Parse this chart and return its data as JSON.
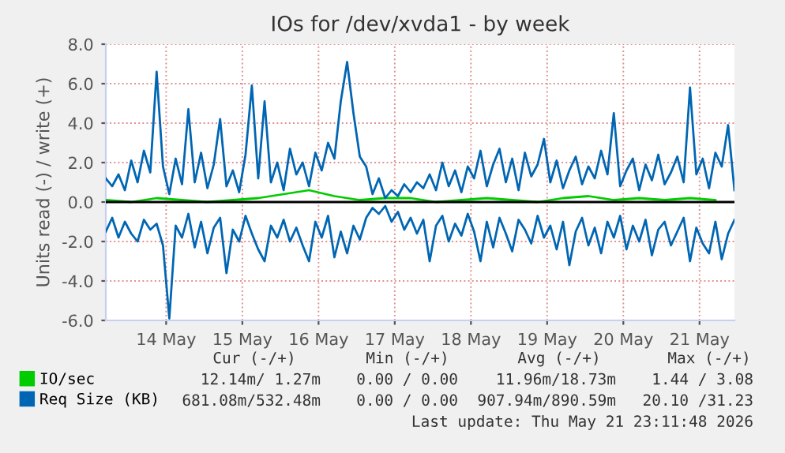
{
  "chart_data": {
    "type": "line",
    "title": "IOs for /dev/xvda1 - by week",
    "ylabel": "Units read (-) / write (+)",
    "x": [
      "2026-05-13T05:00",
      "2026-05-13T07:00",
      "2026-05-13T09:00",
      "2026-05-13T11:00",
      "2026-05-13T13:00",
      "2026-05-13T15:00",
      "2026-05-13T17:00",
      "2026-05-13T19:00",
      "2026-05-13T21:00",
      "2026-05-13T23:00",
      "2026-05-14T01:00",
      "2026-05-14T03:00",
      "2026-05-14T05:00",
      "2026-05-14T07:00",
      "2026-05-14T09:00",
      "2026-05-14T11:00",
      "2026-05-14T13:00",
      "2026-05-14T15:00",
      "2026-05-14T17:00",
      "2026-05-14T19:00",
      "2026-05-14T21:00",
      "2026-05-14T23:00",
      "2026-05-15T01:00",
      "2026-05-15T03:00",
      "2026-05-15T05:00",
      "2026-05-15T07:00",
      "2026-05-15T09:00",
      "2026-05-15T11:00",
      "2026-05-15T13:00",
      "2026-05-15T15:00",
      "2026-05-15T17:00",
      "2026-05-15T19:00",
      "2026-05-15T21:00",
      "2026-05-15T23:00",
      "2026-05-16T01:00",
      "2026-05-16T03:00",
      "2026-05-16T05:00",
      "2026-05-16T07:00",
      "2026-05-16T09:00",
      "2026-05-16T11:00",
      "2026-05-16T13:00",
      "2026-05-16T15:00",
      "2026-05-16T17:00",
      "2026-05-16T19:00",
      "2026-05-16T21:00",
      "2026-05-16T23:00",
      "2026-05-17T01:00",
      "2026-05-17T03:00",
      "2026-05-17T05:00",
      "2026-05-17T07:00",
      "2026-05-17T09:00",
      "2026-05-17T11:00",
      "2026-05-17T13:00",
      "2026-05-17T15:00",
      "2026-05-17T17:00",
      "2026-05-17T19:00",
      "2026-05-17T21:00",
      "2026-05-17T23:00",
      "2026-05-18T01:00",
      "2026-05-18T03:00",
      "2026-05-18T05:00",
      "2026-05-18T07:00",
      "2026-05-18T09:00",
      "2026-05-18T11:00",
      "2026-05-18T13:00",
      "2026-05-18T15:00",
      "2026-05-18T17:00",
      "2026-05-18T19:00",
      "2026-05-18T21:00",
      "2026-05-18T23:00",
      "2026-05-19T01:00",
      "2026-05-19T03:00",
      "2026-05-19T05:00",
      "2026-05-19T07:00",
      "2026-05-19T09:00",
      "2026-05-19T11:00",
      "2026-05-19T13:00",
      "2026-05-19T15:00",
      "2026-05-19T17:00",
      "2026-05-19T19:00",
      "2026-05-19T21:00",
      "2026-05-19T23:00",
      "2026-05-20T01:00",
      "2026-05-20T03:00",
      "2026-05-20T05:00",
      "2026-05-20T07:00",
      "2026-05-20T09:00",
      "2026-05-20T11:00",
      "2026-05-20T13:00",
      "2026-05-20T15:00",
      "2026-05-20T17:00",
      "2026-05-20T19:00",
      "2026-05-20T21:00",
      "2026-05-20T23:00",
      "2026-05-21T01:00",
      "2026-05-21T03:00",
      "2026-05-21T05:00",
      "2026-05-21T07:00",
      "2026-05-21T09:00",
      "2026-05-21T11:00"
    ],
    "series": [
      {
        "name": "IO/sec",
        "color": "#00cc00",
        "x": [
          "2026-05-13T05:00",
          "2026-05-13T13:00",
          "2026-05-13T21:00",
          "2026-05-14T05:00",
          "2026-05-14T13:00",
          "2026-05-14T21:00",
          "2026-05-15T05:00",
          "2026-05-15T13:00",
          "2026-05-15T21:00",
          "2026-05-16T05:00",
          "2026-05-16T13:00",
          "2026-05-16T21:00",
          "2026-05-17T05:00",
          "2026-05-17T13:00",
          "2026-05-17T21:00",
          "2026-05-18T05:00",
          "2026-05-18T13:00",
          "2026-05-18T21:00",
          "2026-05-19T05:00",
          "2026-05-19T13:00",
          "2026-05-19T21:00",
          "2026-05-20T05:00",
          "2026-05-20T13:00",
          "2026-05-20T21:00",
          "2026-05-21T05:00"
        ],
        "values": [
          0.1,
          0.0,
          0.2,
          0.1,
          0.0,
          0.1,
          0.2,
          0.4,
          0.6,
          0.3,
          0.1,
          0.2,
          0.2,
          0.0,
          0.1,
          0.2,
          0.1,
          0.0,
          0.2,
          0.3,
          0.1,
          0.2,
          0.1,
          0.2,
          0.1
        ]
      },
      {
        "name": "Req Size (KB)",
        "color": "#0066b3",
        "values": [
          1.2,
          0.8,
          1.4,
          0.6,
          2.1,
          1.0,
          2.6,
          1.5,
          6.6,
          1.8,
          0.4,
          2.2,
          0.9,
          4.7,
          1.0,
          2.5,
          0.7,
          1.9,
          4.2,
          0.8,
          1.6,
          0.5,
          2.4,
          5.9,
          1.2,
          5.1,
          1.0,
          2.0,
          0.6,
          2.7,
          1.4,
          2.0,
          0.8,
          2.5,
          1.6,
          3.0,
          2.2,
          5.1,
          7.1,
          4.5,
          2.3,
          1.8,
          0.4,
          1.2,
          0.2,
          0.6,
          0.3,
          0.9,
          0.5,
          1.0,
          0.7,
          1.4,
          0.6,
          2.0,
          0.8,
          1.6,
          0.5,
          1.8,
          1.2,
          2.6,
          0.8,
          1.9,
          2.7,
          1.0,
          2.2,
          0.6,
          2.5,
          1.3,
          1.9,
          3.2,
          1.0,
          2.1,
          0.7,
          1.6,
          2.3,
          0.9,
          1.8,
          1.2,
          2.6,
          1.4,
          4.5,
          0.8,
          1.6,
          2.2,
          0.6,
          1.9,
          1.1,
          2.4,
          0.9,
          1.5,
          2.3,
          1.0,
          5.8,
          1.4,
          2.2,
          0.7,
          2.5,
          1.8,
          3.9,
          0.6
        ]
      },
      {
        "color": "#0066b3",
        "values": [
          -1.5,
          -0.8,
          -1.8,
          -1.0,
          -1.6,
          -2.0,
          -0.9,
          -1.4,
          -1.1,
          -2.2,
          -5.9,
          -1.2,
          -1.8,
          -0.6,
          -2.3,
          -1.0,
          -2.6,
          -1.3,
          -0.8,
          -3.6,
          -1.4,
          -2.0,
          -0.7,
          -1.6,
          -2.4,
          -3.0,
          -1.2,
          -1.8,
          -0.9,
          -2.0,
          -1.3,
          -2.2,
          -3.0,
          -1.0,
          -1.8,
          -0.7,
          -2.8,
          -1.5,
          -2.6,
          -1.2,
          -1.9,
          -0.8,
          -0.3,
          -0.6,
          -0.2,
          -1.0,
          -0.5,
          -1.4,
          -0.8,
          -1.6,
          -0.9,
          -3.0,
          -1.2,
          -0.7,
          -2.0,
          -1.1,
          -1.7,
          -0.6,
          -1.5,
          -3.0,
          -1.0,
          -2.3,
          -0.8,
          -1.6,
          -2.5,
          -0.9,
          -1.4,
          -2.1,
          -0.7,
          -1.8,
          -1.2,
          -2.4,
          -1.0,
          -3.2,
          -1.5,
          -0.8,
          -2.2,
          -1.3,
          -2.6,
          -1.0,
          -1.8,
          -0.7,
          -2.4,
          -1.2,
          -2.0,
          -0.9,
          -2.7,
          -1.4,
          -1.0,
          -2.2,
          -1.5,
          -0.8,
          -3.0,
          -1.3,
          -2.1,
          -2.6,
          -1.0,
          -2.9,
          -1.6,
          -0.9
        ]
      }
    ],
    "xlim": [
      "2026-05-13T05:00",
      "2026-05-21T11:00"
    ],
    "xticks": [
      {
        "value": "2026-05-14",
        "label": "14 May"
      },
      {
        "value": "2026-05-15",
        "label": "15 May"
      },
      {
        "value": "2026-05-16",
        "label": "16 May"
      },
      {
        "value": "2026-05-17",
        "label": "17 May"
      },
      {
        "value": "2026-05-18",
        "label": "18 May"
      },
      {
        "value": "2026-05-19",
        "label": "19 May"
      },
      {
        "value": "2026-05-20",
        "label": "20 May"
      },
      {
        "value": "2026-05-21",
        "label": "21 May"
      }
    ],
    "ylim": [
      -6,
      8
    ],
    "yticks": [
      {
        "value": -6,
        "label": "-6.0"
      },
      {
        "value": -4,
        "label": "-4.0"
      },
      {
        "value": -2,
        "label": "-2.0"
      },
      {
        "value": 0,
        "label": "0.0"
      },
      {
        "value": 2,
        "label": "2.0"
      },
      {
        "value": 4,
        "label": "4.0"
      },
      {
        "value": 6,
        "label": "6.0"
      },
      {
        "value": 8,
        "label": "8.0"
      }
    ],
    "ref_lines": [
      {
        "axis": "y",
        "value": 0,
        "color": "#000000"
      }
    ],
    "grid": true,
    "legend": "bottom",
    "marker": "none",
    "line_style": "solid",
    "annotations": [
      "Cur (-/+)",
      "Min (-/+)",
      "Avg (-/+)",
      "Max (-/+)",
      "12.14m/ 1.27m",
      "0.00 / 0.00",
      "11.96m/18.73m",
      "1.44 / 3.08",
      "681.08m/532.48m",
      "0.00 / 0.00",
      "907.94m/890.59m",
      "20.10 /31.23",
      "Last update: Thu May 21 23:11:48 2026"
    ]
  }
}
